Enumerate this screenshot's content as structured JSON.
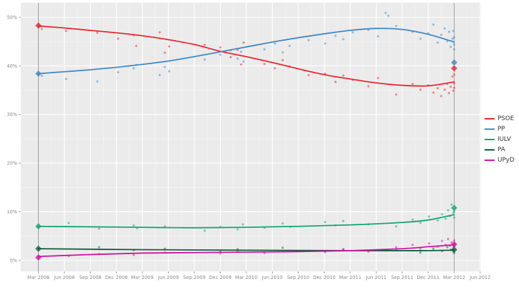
{
  "figure": {
    "background": "#ffffff"
  },
  "chart_data": {
    "type": "scatter",
    "subtype": "polling-scatter-with-loess-trend",
    "title": "",
    "description": "Opinion polling for the Andalusian regional election: poll scatter points with smoothed trend lines per party, diamond markers at the Mar 2008 and Mar 2012 election results",
    "grid": true,
    "panel": {
      "background": "#ebebeb",
      "grid_major_color": "#ffffff",
      "grid_minor_color": "#ffffff",
      "election_line_color": "#9b9b9b",
      "axis_text_color": "#8a8a8a",
      "tick_color": "#9b9b9b"
    },
    "x_axis": {
      "label": "",
      "tick_months": [
        0,
        3,
        6,
        9,
        12,
        15,
        18,
        21,
        24,
        27,
        30,
        33,
        36,
        39,
        42,
        45,
        48,
        51
      ],
      "tick_labels": [
        "Mar 2008",
        "Jun 2008",
        "Sep 2008",
        "Dec 2008",
        "Mar 2009",
        "Jun 2009",
        "Sep 2009",
        "Dec 2009",
        "Mar 2010",
        "Jun 2010",
        "Sep 2010",
        "Dec 2010",
        "Mar 2011",
        "Jun 2011",
        "Sep 2011",
        "Dec 2011",
        "Mar 2012",
        "Jun 2012"
      ]
    },
    "y_axis": {
      "label": "",
      "ticks": [
        0,
        10,
        20,
        30,
        40,
        50
      ],
      "tick_labels": [
        "0%",
        "10%",
        "20%",
        "30%",
        "40%",
        "50%"
      ],
      "minor_ticks": [
        5,
        15,
        25,
        35,
        45
      ],
      "ylim": [
        0,
        52.9
      ]
    },
    "elections": [
      {
        "label": "Mar 2008",
        "month": 0,
        "results": {
          "PSOE": 48.3,
          "PP": 38.4,
          "IULV": 7.0,
          "PA": 2.4,
          "UPyD": 0.6
        }
      },
      {
        "label": "Mar 2012",
        "month": 48,
        "results": {
          "PSOE": 39.5,
          "PP": 40.7,
          "IULV": 10.8,
          "PA": 2.2,
          "UPyD": 3.3
        }
      }
    ],
    "series": [
      {
        "name": "PSOE",
        "color": "#e8232e",
        "trend": [
          [
            0,
            48.2
          ],
          [
            3,
            47.8
          ],
          [
            6,
            47.3
          ],
          [
            9,
            46.8
          ],
          [
            12,
            46.2
          ],
          [
            15,
            45.4
          ],
          [
            18,
            44.4
          ],
          [
            21,
            43.0
          ],
          [
            24,
            41.9
          ],
          [
            27,
            40.7
          ],
          [
            30,
            39.4
          ],
          [
            33,
            38.2
          ],
          [
            36,
            37.3
          ],
          [
            39,
            36.5
          ],
          [
            42,
            36.0
          ],
          [
            45,
            35.9
          ],
          [
            48,
            36.7
          ]
        ],
        "polls": [
          [
            0.4,
            47.6
          ],
          [
            3.2,
            47.2
          ],
          [
            6.8,
            46.8
          ],
          [
            9.2,
            45.6
          ],
          [
            11.0,
            46.3
          ],
          [
            11.3,
            44.1
          ],
          [
            14.0,
            46.9
          ],
          [
            14.6,
            42.7
          ],
          [
            15.1,
            44.0
          ],
          [
            19.2,
            44.3
          ],
          [
            21.0,
            43.8
          ],
          [
            22.2,
            41.8
          ],
          [
            23.0,
            43.3
          ],
          [
            23.4,
            40.3
          ],
          [
            23.7,
            44.8
          ],
          [
            26.1,
            40.4
          ],
          [
            27.3,
            39.5
          ],
          [
            28.2,
            41.2
          ],
          [
            29.0,
            39.9
          ],
          [
            31.2,
            38.1
          ],
          [
            33.1,
            38.4
          ],
          [
            34.3,
            36.7
          ],
          [
            35.2,
            38.0
          ],
          [
            36.3,
            37.1
          ],
          [
            38.1,
            35.8
          ],
          [
            39.2,
            37.5
          ],
          [
            41.3,
            34.1
          ],
          [
            43.2,
            36.3
          ],
          [
            44.1,
            35.1
          ],
          [
            45.0,
            36.0
          ],
          [
            45.6,
            34.5
          ],
          [
            46.1,
            35.4
          ],
          [
            46.5,
            33.8
          ],
          [
            46.9,
            35.1
          ],
          [
            47.2,
            36.3
          ],
          [
            47.4,
            34.4
          ],
          [
            47.6,
            35.7
          ],
          [
            47.8,
            37.8
          ],
          [
            47.9,
            34.9
          ],
          [
            48.0,
            36.4
          ],
          [
            48.0,
            35.5
          ],
          [
            48.0,
            38.2
          ]
        ]
      },
      {
        "name": "PP",
        "color": "#3d87c4",
        "trend": [
          [
            0,
            38.4
          ],
          [
            3,
            38.8
          ],
          [
            6,
            39.2
          ],
          [
            9,
            39.7
          ],
          [
            12,
            40.3
          ],
          [
            15,
            41.0
          ],
          [
            18,
            41.9
          ],
          [
            21,
            42.9
          ],
          [
            24,
            43.9
          ],
          [
            27,
            44.9
          ],
          [
            30,
            45.8
          ],
          [
            33,
            46.6
          ],
          [
            36,
            47.3
          ],
          [
            39,
            47.7
          ],
          [
            42,
            47.5
          ],
          [
            45,
            46.5
          ],
          [
            48,
            44.9
          ]
        ],
        "polls": [
          [
            0.4,
            38.0
          ],
          [
            3.2,
            37.3
          ],
          [
            6.8,
            36.8
          ],
          [
            9.2,
            38.7
          ],
          [
            11.0,
            39.5
          ],
          [
            11.3,
            40.2
          ],
          [
            14.0,
            38.1
          ],
          [
            14.6,
            39.8
          ],
          [
            15.1,
            38.9
          ],
          [
            19.2,
            41.3
          ],
          [
            21.0,
            42.3
          ],
          [
            22.2,
            43.2
          ],
          [
            23.0,
            41.5
          ],
          [
            23.4,
            42.9
          ],
          [
            23.7,
            40.9
          ],
          [
            26.1,
            43.4
          ],
          [
            27.3,
            44.6
          ],
          [
            28.2,
            42.8
          ],
          [
            29.0,
            44.1
          ],
          [
            31.2,
            45.3
          ],
          [
            33.1,
            44.6
          ],
          [
            34.3,
            46.2
          ],
          [
            35.2,
            45.5
          ],
          [
            36.3,
            46.9
          ],
          [
            38.1,
            47.4
          ],
          [
            39.2,
            46.1
          ],
          [
            40.1,
            50.9
          ],
          [
            40.4,
            50.3
          ],
          [
            41.3,
            48.2
          ],
          [
            43.2,
            47.0
          ],
          [
            44.1,
            45.6
          ],
          [
            45.0,
            46.7
          ],
          [
            45.6,
            48.5
          ],
          [
            46.1,
            44.8
          ],
          [
            46.5,
            46.4
          ],
          [
            46.9,
            47.7
          ],
          [
            47.2,
            45.1
          ],
          [
            47.4,
            47.0
          ],
          [
            47.6,
            43.9
          ],
          [
            47.8,
            45.6
          ],
          [
            47.9,
            47.2
          ],
          [
            48.0,
            44.4
          ],
          [
            48.0,
            45.9
          ],
          [
            48.0,
            43.4
          ]
        ]
      },
      {
        "name": "IULV",
        "color": "#12a36f",
        "trend": [
          [
            0,
            7.0
          ],
          [
            6,
            6.9
          ],
          [
            12,
            6.8
          ],
          [
            18,
            6.7
          ],
          [
            24,
            6.8
          ],
          [
            30,
            7.0
          ],
          [
            36,
            7.3
          ],
          [
            42,
            7.8
          ],
          [
            45,
            8.3
          ],
          [
            48,
            9.4
          ]
        ],
        "polls": [
          [
            3.5,
            7.7
          ],
          [
            7.0,
            6.5
          ],
          [
            11.0,
            7.2
          ],
          [
            11.4,
            6.6
          ],
          [
            14.6,
            7.0
          ],
          [
            19.2,
            6.1
          ],
          [
            21.0,
            6.9
          ],
          [
            23.0,
            6.4
          ],
          [
            23.6,
            7.4
          ],
          [
            26.1,
            6.7
          ],
          [
            28.2,
            7.6
          ],
          [
            29.1,
            6.9
          ],
          [
            33.1,
            7.9
          ],
          [
            34.3,
            7.2
          ],
          [
            35.2,
            8.1
          ],
          [
            38.1,
            7.4
          ],
          [
            41.3,
            7.0
          ],
          [
            43.2,
            8.4
          ],
          [
            44.1,
            7.7
          ],
          [
            45.1,
            9.0
          ],
          [
            46.1,
            8.2
          ],
          [
            46.6,
            9.5
          ],
          [
            47.0,
            8.6
          ],
          [
            47.3,
            10.3
          ],
          [
            47.5,
            9.1
          ],
          [
            47.7,
            11.5
          ],
          [
            47.9,
            9.8
          ],
          [
            48.0,
            8.8
          ],
          [
            48.0,
            10.1
          ]
        ]
      },
      {
        "name": "PA",
        "color": "#0d5c3c",
        "trend": [
          [
            0,
            2.4
          ],
          [
            12,
            2.2
          ],
          [
            24,
            2.1
          ],
          [
            36,
            2.0
          ],
          [
            44,
            2.0
          ],
          [
            48,
            2.1
          ]
        ],
        "polls": [
          [
            7.0,
            2.7
          ],
          [
            11.0,
            2.1
          ],
          [
            14.6,
            2.4
          ],
          [
            21.0,
            1.8
          ],
          [
            23.0,
            2.3
          ],
          [
            28.2,
            2.6
          ],
          [
            33.1,
            1.9
          ],
          [
            35.2,
            2.3
          ],
          [
            41.3,
            2.1
          ],
          [
            44.1,
            1.6
          ],
          [
            45.6,
            2.4
          ],
          [
            46.6,
            1.9
          ],
          [
            47.2,
            2.7
          ],
          [
            47.6,
            2.2
          ],
          [
            47.9,
            1.8
          ],
          [
            48.0,
            2.9
          ],
          [
            48.0,
            1.5
          ]
        ]
      },
      {
        "name": "UPyD",
        "color": "#cf109e",
        "trend": [
          [
            0,
            0.8
          ],
          [
            6,
            1.2
          ],
          [
            12,
            1.5
          ],
          [
            18,
            1.6
          ],
          [
            24,
            1.7
          ],
          [
            30,
            1.8
          ],
          [
            36,
            2.0
          ],
          [
            42,
            2.4
          ],
          [
            45,
            2.8
          ],
          [
            48,
            3.2
          ]
        ],
        "polls": [
          [
            3.5,
            0.9
          ],
          [
            7.0,
            1.3
          ],
          [
            11.0,
            1.1
          ],
          [
            14.6,
            1.6
          ],
          [
            21.0,
            1.4
          ],
          [
            23.0,
            1.9
          ],
          [
            26.1,
            1.5
          ],
          [
            29.1,
            2.0
          ],
          [
            33.1,
            1.7
          ],
          [
            35.2,
            2.2
          ],
          [
            38.1,
            1.8
          ],
          [
            41.3,
            2.7
          ],
          [
            43.2,
            3.2
          ],
          [
            44.1,
            2.4
          ],
          [
            45.1,
            3.5
          ],
          [
            46.1,
            2.8
          ],
          [
            46.6,
            4.0
          ],
          [
            47.0,
            3.2
          ],
          [
            47.3,
            4.4
          ],
          [
            47.5,
            3.0
          ],
          [
            47.7,
            3.7
          ],
          [
            47.9,
            2.6
          ],
          [
            48.0,
            3.3
          ],
          [
            48.0,
            4.1
          ]
        ]
      }
    ],
    "legend": {
      "position": "right",
      "items": [
        "PSOE",
        "PP",
        "IULV",
        "PA",
        "UPyD"
      ]
    }
  }
}
